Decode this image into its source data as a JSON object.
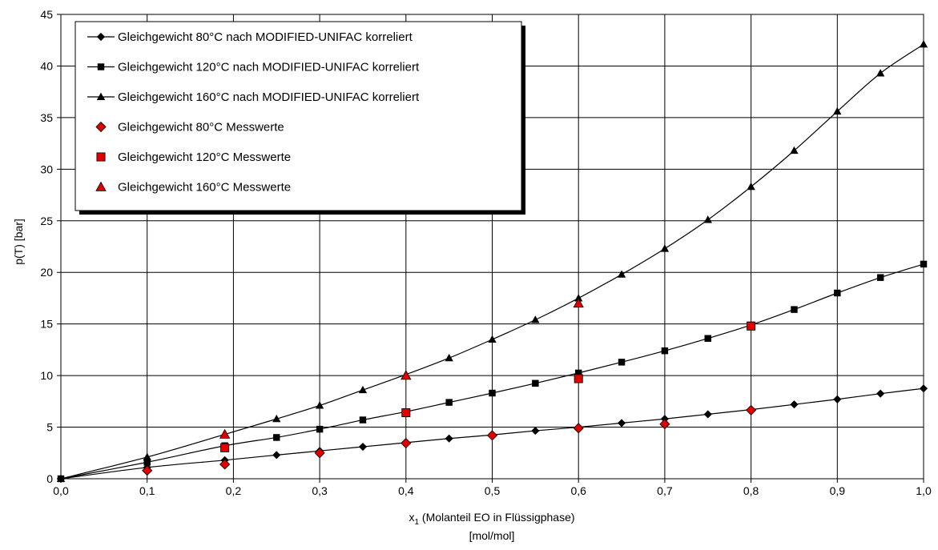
{
  "chart_data": {
    "type": "line",
    "title": "",
    "xlabel": "x₁ (Molanteil EO in Flüssigphase)",
    "xlabel_sub": "1",
    "xlabel_line2": "[mol/mol]",
    "ylabel": "p(T)  [bar]",
    "xlim": [
      0,
      1
    ],
    "ylim": [
      0,
      45
    ],
    "x_ticks": [
      0,
      0.1,
      0.2,
      0.3,
      0.4,
      0.5,
      0.6,
      0.7,
      0.8,
      0.9,
      1.0
    ],
    "x_tick_labels": [
      "0,0",
      "0,1",
      "0,2",
      "0,3",
      "0,4",
      "0,5",
      "0,6",
      "0,7",
      "0,8",
      "0,9",
      "1,0"
    ],
    "y_ticks": [
      0,
      5,
      10,
      15,
      20,
      25,
      30,
      35,
      40,
      45
    ],
    "y_tick_labels": [
      "0",
      "5",
      "10",
      "15",
      "20",
      "25",
      "30",
      "35",
      "40",
      "45"
    ],
    "grid": true,
    "legend_position": "top-left",
    "series": [
      {
        "name": "Gleichgewicht 80°C nach MODIFIED-UNIFAC korreliert",
        "kind": "line",
        "marker": "diamond",
        "color": "#000000",
        "x": [
          0,
          0.1,
          0.19,
          0.25,
          0.3,
          0.35,
          0.4,
          0.45,
          0.5,
          0.55,
          0.6,
          0.65,
          0.7,
          0.75,
          0.8,
          0.85,
          0.9,
          0.95,
          1.0
        ],
        "y": [
          0,
          1.1,
          1.8,
          2.3,
          2.7,
          3.1,
          3.5,
          3.9,
          4.25,
          4.65,
          5.0,
          5.4,
          5.8,
          6.25,
          6.7,
          7.2,
          7.7,
          8.25,
          8.75
        ]
      },
      {
        "name": "Gleichgewicht 120°C nach MODIFIED-UNIFAC korreliert",
        "kind": "line",
        "marker": "square",
        "color": "#000000",
        "x": [
          0,
          0.1,
          0.19,
          0.25,
          0.3,
          0.35,
          0.4,
          0.45,
          0.5,
          0.55,
          0.6,
          0.65,
          0.7,
          0.75,
          0.8,
          0.85,
          0.9,
          0.95,
          1.0
        ],
        "y": [
          0,
          1.6,
          3.2,
          4.0,
          4.8,
          5.7,
          6.5,
          7.4,
          8.3,
          9.25,
          10.25,
          11.3,
          12.4,
          13.6,
          14.9,
          16.4,
          18.0,
          19.5,
          20.8
        ]
      },
      {
        "name": "Gleichgewicht 160°C nach MODIFIED-UNIFAC korreliert",
        "kind": "line",
        "marker": "triangle",
        "color": "#000000",
        "x": [
          0,
          0.1,
          0.19,
          0.25,
          0.3,
          0.35,
          0.4,
          0.45,
          0.5,
          0.55,
          0.6,
          0.65,
          0.7,
          0.75,
          0.8,
          0.85,
          0.9,
          0.95,
          1.0
        ],
        "y": [
          0,
          2.1,
          4.3,
          5.8,
          7.1,
          8.6,
          10.1,
          11.7,
          13.5,
          15.4,
          17.5,
          19.8,
          22.3,
          25.1,
          28.3,
          31.8,
          35.6,
          39.3,
          42.1
        ]
      },
      {
        "name": "Gleichgewicht 80°C Messwerte",
        "kind": "scatter",
        "marker": "diamond",
        "color": "#e00000",
        "x": [
          0.1,
          0.19,
          0.3,
          0.4,
          0.5,
          0.6,
          0.7,
          0.8
        ],
        "y": [
          0.8,
          1.4,
          2.5,
          3.45,
          4.2,
          4.9,
          5.3,
          6.65
        ]
      },
      {
        "name": "Gleichgewicht 120°C Messwerte",
        "kind": "scatter",
        "marker": "square",
        "color": "#e00000",
        "x": [
          0.19,
          0.4,
          0.6,
          0.8
        ],
        "y": [
          3.0,
          6.4,
          9.7,
          14.8
        ]
      },
      {
        "name": "Gleichgewicht 160°C Messwerte",
        "kind": "scatter",
        "marker": "triangle",
        "color": "#e00000",
        "x": [
          0.19,
          0.4,
          0.6
        ],
        "y": [
          4.3,
          10.0,
          17.0
        ]
      }
    ]
  }
}
